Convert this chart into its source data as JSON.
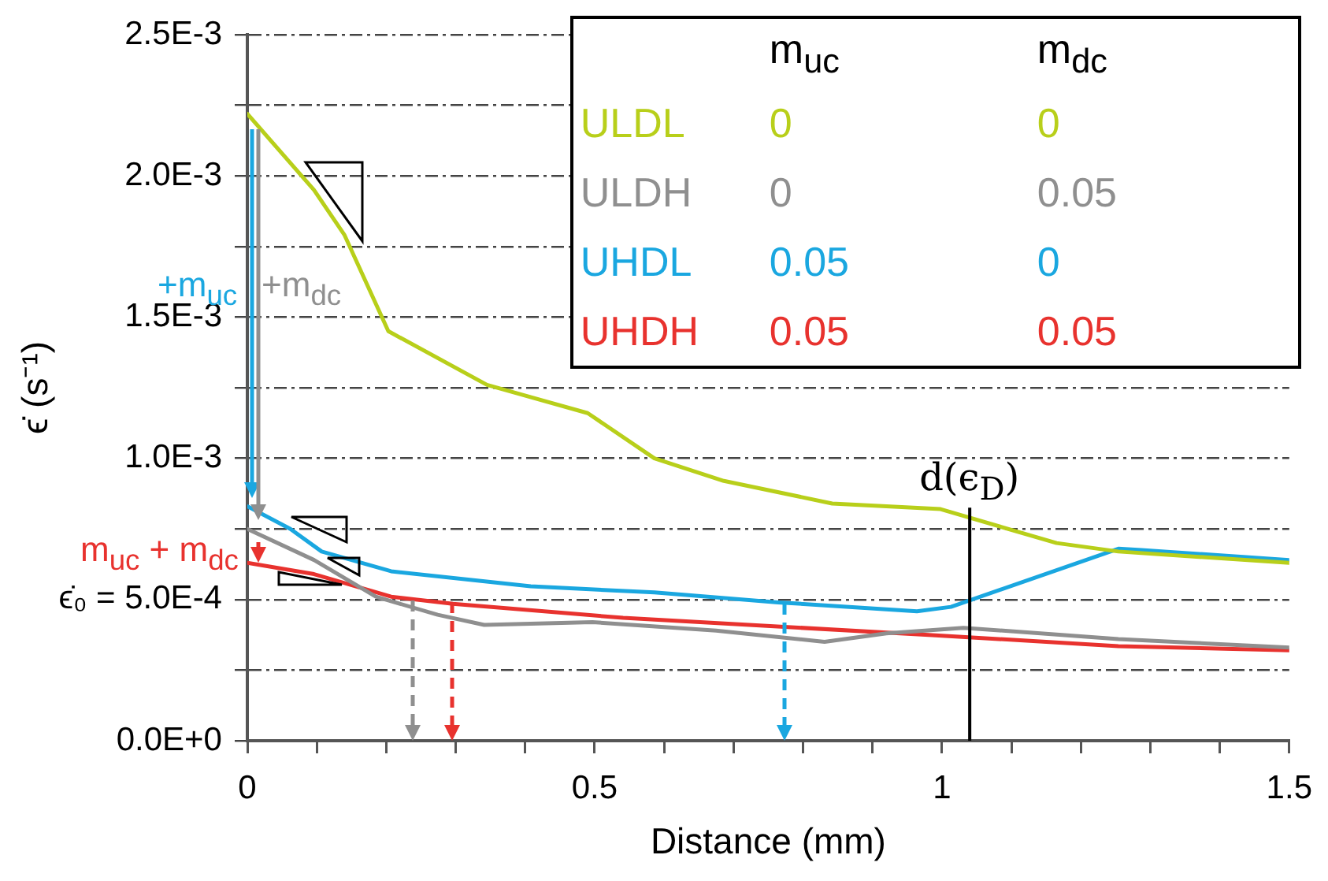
{
  "chart_data": {
    "type": "line",
    "xlabel": "Distance (mm)",
    "ylabel": "ϵ̇ (s⁻¹)",
    "xlim": [
      0,
      1.5
    ],
    "xticks": [
      0,
      {
        "value": 0.1,
        "label": null
      },
      {
        "value": 0.2,
        "label": null
      },
      {
        "value": 0.3,
        "label": null
      },
      {
        "value": 0.4,
        "label": null
      },
      0.5,
      {
        "value": 0.6,
        "label": null
      },
      {
        "value": 0.7,
        "label": null
      },
      {
        "value": 0.8,
        "label": null
      },
      {
        "value": 0.9,
        "label": null
      },
      1,
      {
        "value": 1.1,
        "label": null
      },
      {
        "value": 1.2,
        "label": null
      },
      {
        "value": 1.3,
        "label": null
      },
      {
        "value": 1.4,
        "label": null
      },
      1.5
    ],
    "ylim": [
      0,
      0.0025
    ],
    "yticks": [
      {
        "value": 0,
        "label": "0.0E+0"
      },
      {
        "value": 0.00025,
        "label": null
      },
      {
        "value": 0.0005,
        "label": "ϵ̇₀ = 5.0E-4"
      },
      {
        "value": 0.00075,
        "label": null
      },
      {
        "value": 0.001,
        "label": "1.0E-3"
      },
      {
        "value": 0.00125,
        "label": null
      },
      {
        "value": 0.0015,
        "label": "1.5E-3"
      },
      {
        "value": 0.00175,
        "label": null
      },
      {
        "value": 0.002,
        "label": "2.0E-3"
      },
      {
        "value": 0.00225,
        "label": null
      },
      {
        "value": 0.0025,
        "label": "2.5E-3"
      }
    ],
    "grid": "y",
    "legend": "top right",
    "marker": "none",
    "line_style": "solid",
    "series": [
      {
        "name": "ULDL",
        "color": "#b8cf1a",
        "x": [
          0,
          0.096,
          0.14,
          0.203,
          0.345,
          0.49,
          0.586,
          0.686,
          0.842,
          0.998,
          1.165,
          1.254,
          1.5
        ],
        "values": [
          0.00222,
          0.00195,
          0.00179,
          0.00145,
          0.00126,
          0.00116,
          0.001,
          0.00092,
          0.00084,
          0.00082,
          0.0007,
          0.00067,
          0.00063
        ]
      },
      {
        "name": "ULDH",
        "color": "#8f8f8f",
        "x": [
          0,
          0.096,
          0.185,
          0.274,
          0.341,
          0.497,
          0.675,
          0.831,
          0.92,
          1.031,
          1.254,
          1.5
        ],
        "values": [
          0.00075,
          0.00064,
          0.00051,
          0.000446,
          0.00041,
          0.00042,
          0.00039,
          0.00035,
          0.00038,
          0.0004,
          0.00036,
          0.00033
        ]
      },
      {
        "name": "UHDL",
        "color": "#1aa7e0",
        "x": [
          0,
          0.062,
          0.107,
          0.207,
          0.408,
          0.586,
          0.764,
          0.964,
          1.013,
          1.254,
          1.287,
          1.5
        ],
        "values": [
          0.00083,
          0.00075,
          0.00067,
          0.0006,
          0.000547,
          0.000525,
          0.00049,
          0.000458,
          0.000474,
          0.00068,
          0.000675,
          0.00064
        ]
      },
      {
        "name": "UHDH",
        "color": "#e8322e",
        "x": [
          0,
          0.096,
          0.207,
          0.296,
          0.541,
          0.986,
          1.254,
          1.5
        ],
        "values": [
          0.00063,
          0.00059,
          0.00051,
          0.000485,
          0.000435,
          0.000374,
          0.000335,
          0.00032
        ]
      }
    ],
    "ref_lines": [
      {
        "axis": "x",
        "value": 1.04,
        "label": "d(ϵ$_{D}$)",
        "color": "#000000"
      }
    ],
    "annotations": [
      "m$_{uc}$",
      "m$_{dc}$",
      "0",
      "0",
      "0",
      "0.05",
      "0.05",
      "0",
      "0.05",
      "0.05",
      "+m$_{uc}$",
      "+m$_{dc}$",
      "m$_{uc}$ + m$_{dc}$"
    ]
  }
}
